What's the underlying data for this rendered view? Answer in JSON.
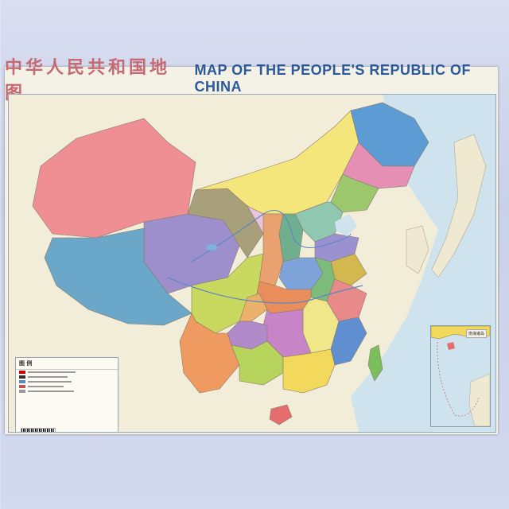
{
  "title": {
    "chinese": "中华人民共和国地图",
    "english": "MAP OF THE PEOPLE'S REPUBLIC OF CHINA"
  },
  "legend": {
    "heading": "图 例"
  },
  "inset": {
    "label": "南海诸岛"
  },
  "colors": {
    "ocean": "#cfe3ef",
    "land_outside": "#f1edd8",
    "xinjiang": "#ef8f93",
    "tibet": "#6aa7c9",
    "qinghai": "#9c8fcb",
    "inner_mongolia": "#f4e67a",
    "heilongjiang": "#5d9bd4",
    "jilin": "#e58fb5",
    "liaoning": "#9cc76d",
    "gansu": "#a89f7b",
    "sichuan": "#c9d85e",
    "yunnan": "#ef9a60",
    "guangxi": "#b6d35b",
    "guangdong": "#f2d95b",
    "fujian": "#5f8fd1",
    "zhejiang": "#e88a8a",
    "jiangxi": "#f0e68a",
    "hunan": "#c784c7",
    "hubei": "#e98d5a",
    "henan": "#7ea3d9",
    "shandong": "#9b90d0",
    "shanxi": "#6fae8f",
    "shaanxi": "#e8a16f",
    "guizhou": "#b08ac9",
    "chongqing": "#eab26a",
    "anhui": "#7dbb7a",
    "jiangsu": "#d2b84e",
    "hebei": "#8fc7b0",
    "ningxia": "#e7c4d9",
    "taiwan": "#7abf5c",
    "hainan": "#e46d6d"
  }
}
